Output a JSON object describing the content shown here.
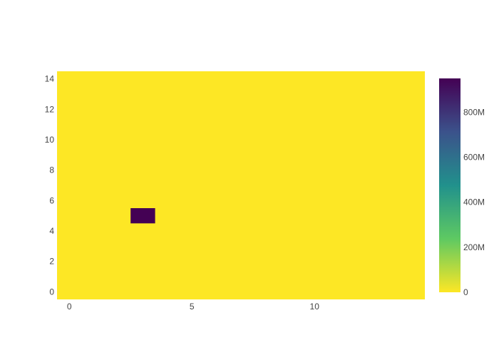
{
  "chart_data": {
    "type": "heatmap",
    "x_range": [
      -0.5,
      14.5
    ],
    "y_range": [
      -0.5,
      14.5
    ],
    "x_ticks": [
      0,
      5,
      10
    ],
    "y_ticks": [
      0,
      2,
      4,
      6,
      8,
      10,
      12,
      14
    ],
    "grid": [
      14,
      14
    ],
    "cells": [
      {
        "x": 3,
        "y": 5,
        "value": 950000000
      }
    ],
    "background_value": 0,
    "colorbar": {
      "min": 0,
      "max": 950000000,
      "ticks": [
        {
          "value": 0,
          "label": "0"
        },
        {
          "value": 200000000,
          "label": "200M"
        },
        {
          "value": 400000000,
          "label": "400M"
        },
        {
          "value": 600000000,
          "label": "600M"
        },
        {
          "value": 800000000,
          "label": "800M"
        }
      ],
      "colorscale": "Viridis (reversed)",
      "colors": [
        "#fde725",
        "#5ec962",
        "#21918c",
        "#3b528b",
        "#440154"
      ]
    }
  }
}
